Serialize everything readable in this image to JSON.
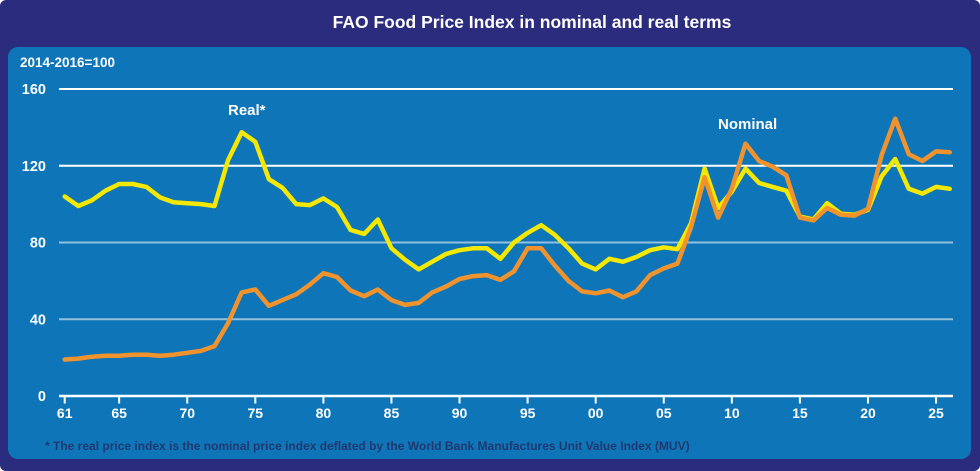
{
  "title": "FAO Food Price Index in nominal and real terms",
  "subtitle": "2014-2016=100",
  "footnote": "* The real price index is the nominal price index deflated by the World Bank Manufactures Unit Value Index (MUV)",
  "colors": {
    "canvas_navy": "#2b2c7e",
    "panel_blue": "#0e75b8",
    "nominal_orange": "#f1932d",
    "real_yellow": "#f5e800",
    "grid_strong": "#ffffff",
    "grid_weak": "rgba(255,255,255,0.55)",
    "footnote_text": "#21386f"
  },
  "chart_data": {
    "type": "line",
    "title": "FAO Food Price Index in nominal and real terms",
    "subtitle": "2014-2016=100",
    "xlabel": "",
    "ylabel": "",
    "ylim": [
      0,
      160
    ],
    "xlim": [
      1961,
      2026
    ],
    "grid": "horizontal",
    "legend_position": "inline-annotations",
    "yticks": [
      0,
      40,
      80,
      120,
      160
    ],
    "xticks": {
      "values": [
        1961,
        1965,
        1970,
        1975,
        1980,
        1985,
        1990,
        1995,
        2000,
        2005,
        2010,
        2015,
        2020,
        2025
      ],
      "labels": [
        "61",
        "65",
        "70",
        "75",
        "80",
        "85",
        "90",
        "95",
        "00",
        "05",
        "10",
        "15",
        "20",
        "25"
      ]
    },
    "x": [
      1961,
      1962,
      1963,
      1964,
      1965,
      1966,
      1967,
      1968,
      1969,
      1970,
      1971,
      1972,
      1973,
      1974,
      1975,
      1976,
      1977,
      1978,
      1979,
      1980,
      1981,
      1982,
      1983,
      1984,
      1985,
      1986,
      1987,
      1988,
      1989,
      1990,
      1991,
      1992,
      1993,
      1994,
      1995,
      1996,
      1997,
      1998,
      1999,
      2000,
      2001,
      2002,
      2003,
      2004,
      2005,
      2006,
      2007,
      2008,
      2009,
      2010,
      2011,
      2012,
      2013,
      2014,
      2015,
      2016,
      2017,
      2018,
      2019,
      2020,
      2021,
      2022,
      2023,
      2024,
      2025,
      2026
    ],
    "series": [
      {
        "name": "Nominal",
        "color": "#f1932d",
        "values": [
          19,
          19.5,
          20.5,
          21,
          21,
          21.5,
          21.5,
          21,
          21.5,
          22.5,
          23.5,
          26,
          38,
          54,
          55.5,
          47,
          50,
          53,
          58,
          64,
          62,
          55,
          52,
          55.5,
          50,
          47.5,
          48.5,
          54,
          57,
          61,
          62.5,
          63,
          60.5,
          65,
          77,
          77,
          68,
          60,
          54.5,
          53.5,
          55,
          51.5,
          54.5,
          63,
          66.5,
          69,
          88,
          114,
          93,
          108,
          131.5,
          122.5,
          119.5,
          115,
          93,
          91.5,
          98,
          94.5,
          94,
          97.5,
          125.5,
          144.5,
          126,
          122.5,
          127.5,
          127
        ]
      },
      {
        "name": "Real*",
        "color": "#f5e800",
        "values": [
          104,
          99,
          102,
          107,
          110.5,
          110.5,
          109,
          103.5,
          101,
          100.5,
          100,
          99,
          123,
          137.5,
          132.5,
          113,
          108.5,
          100,
          99.5,
          103,
          98.5,
          86.5,
          84.5,
          92,
          77,
          71,
          66,
          70,
          74,
          76,
          77,
          77,
          71.5,
          80,
          85,
          89,
          84,
          77,
          69,
          66,
          71.5,
          70,
          72.5,
          76,
          77.5,
          76.5,
          90,
          118.5,
          98,
          106.5,
          118.5,
          111,
          109,
          107,
          93.5,
          92,
          100.5,
          95,
          94.5,
          97,
          114.5,
          123.5,
          108,
          105.5,
          109,
          108
        ]
      }
    ]
  }
}
